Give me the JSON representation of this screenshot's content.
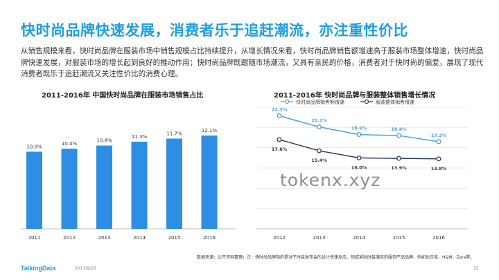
{
  "slide": {
    "title": "快时尚品牌快速发展，消费者乐于追赶潮流，亦注重性价比",
    "body": "从销售规模来看，快时尚品牌在服装市场中销售规模占比持续提升，从增长情况来看，快时尚品牌销售额增速高于服装市场整体增速，快时尚品牌快速发展，对服装市场的增长起到良好的推动作用；快时尚品牌既跟随市场潮流，又具有亲民的价格，消费者对于快时尚的偏爱，展现了现代消费者既乐于追赶潮流又关注性价比的消费心理。",
    "source": "数据来源：公开资料整理；注：快时尚品牌指的是对于时装发布会的设计快速反应、制成紧贴时装潮流的服饰产品品牌，例如优衣库、H&M、Zara等。",
    "brand": "TalkingData",
    "date": "2017/9/26",
    "page": "35",
    "watermark": "tokenx.xyz"
  },
  "colors": {
    "title": "#1d9ee0",
    "bar": "#2e8ee3",
    "series1": "#4c9fdc",
    "series2": "#26395e"
  },
  "chart_data": [
    {
      "type": "bar",
      "title": "2011-2016年 中国快时尚品牌在服装市场销售占比",
      "categories": [
        "2011",
        "2012",
        "2013",
        "2014",
        "2015",
        "2016"
      ],
      "values": [
        10.0,
        10.4,
        10.8,
        11.3,
        11.7,
        12.1
      ],
      "value_labels": [
        "10.0%",
        "10.4%",
        "10.8%",
        "11.3%",
        "11.7%",
        "12.1%"
      ],
      "xlabel": "",
      "ylabel": "",
      "ylim": [
        0,
        13
      ],
      "grid": false
    },
    {
      "type": "line",
      "title": "2011-2016年 快时尚品牌与服装整体销售增长情况",
      "categories": [
        "2012",
        "2013",
        "2014",
        "2015",
        "2016"
      ],
      "series": [
        {
          "name": "快时尚品牌销售额增速",
          "values": [
            22.3,
            20.1,
            18.6,
            18.4,
            17.2
          ],
          "labels": [
            "22.3%",
            "20.1%",
            "18.6%",
            "18.4%",
            "17.2%"
          ]
        },
        {
          "name": "服装整体销售增速",
          "values": [
            17.6,
            15.4,
            14.0,
            13.9,
            13.8
          ],
          "labels": [
            "17.6%",
            "15.4%",
            "14.0%",
            "13.9%",
            "13.8%"
          ]
        }
      ],
      "legend": "top",
      "ylim": [
        0,
        24
      ],
      "grid": true
    }
  ]
}
